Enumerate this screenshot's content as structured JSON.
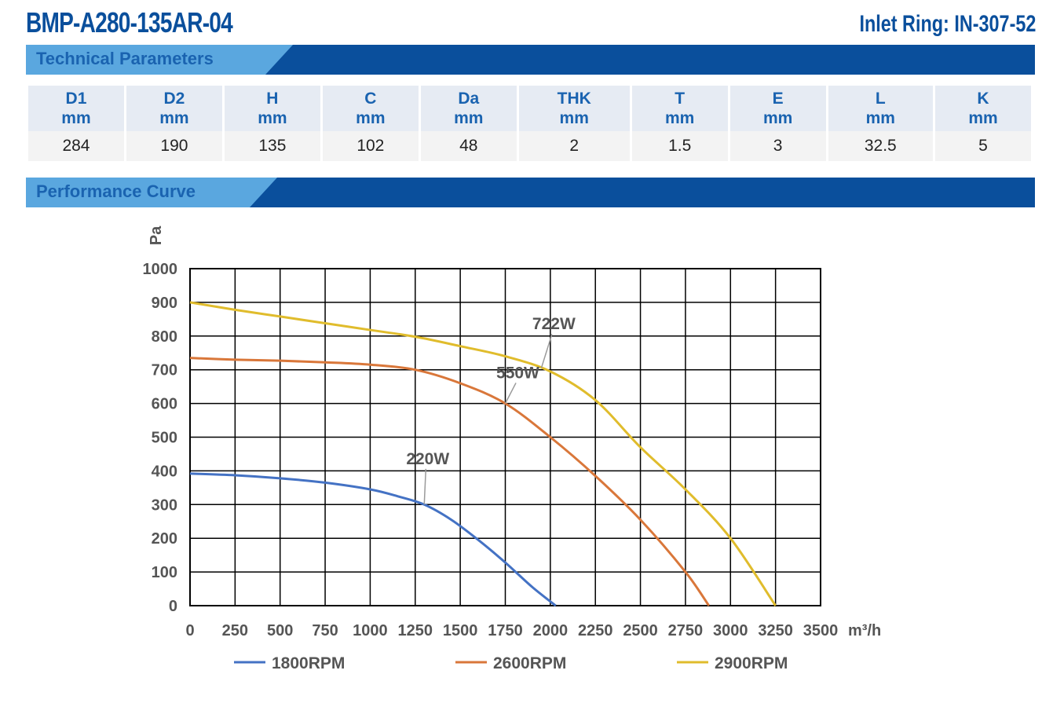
{
  "header": {
    "title": "BMP-A280-135AR-04",
    "inlet_ring": "Inlet Ring: IN-307-52"
  },
  "sections": {
    "technical": "Technical Parameters",
    "performance": "Performance Curve"
  },
  "params": {
    "columns": [
      {
        "name": "D1",
        "unit": "mm",
        "value": "284"
      },
      {
        "name": "D2",
        "unit": "mm",
        "value": "190"
      },
      {
        "name": "H",
        "unit": "mm",
        "value": "135"
      },
      {
        "name": "C",
        "unit": "mm",
        "value": "102"
      },
      {
        "name": "Da",
        "unit": "mm",
        "value": "48"
      },
      {
        "name": "THK",
        "unit": "mm",
        "value": "2"
      },
      {
        "name": "T",
        "unit": "mm",
        "value": "1.5"
      },
      {
        "name": "E",
        "unit": "mm",
        "value": "3"
      },
      {
        "name": "L",
        "unit": "mm",
        "value": "32.5"
      },
      {
        "name": "K",
        "unit": "mm",
        "value": "5"
      }
    ]
  },
  "colors": {
    "brand_blue": "#0a4f9c",
    "bar_blue": "#0a4f9c",
    "bar_light": "#5aa7df",
    "series_1800": "#4472c4",
    "series_2600": "#d9773a",
    "series_2900": "#e0bc2c"
  },
  "chart_data": {
    "type": "line",
    "ylabel": "Pa",
    "xlabel": "m³/h",
    "xlim": [
      0,
      3500
    ],
    "ylim": [
      0,
      1000
    ],
    "xticks": [
      0,
      250,
      500,
      750,
      1000,
      1250,
      1500,
      1750,
      2000,
      2250,
      2500,
      2750,
      3000,
      3250,
      3500
    ],
    "yticks": [
      0,
      100,
      200,
      300,
      400,
      500,
      600,
      700,
      800,
      900,
      1000
    ],
    "grid": true,
    "legend_position": "bottom",
    "series": [
      {
        "name": "1800RPM",
        "color": "#4472c4",
        "points": [
          [
            0,
            392
          ],
          [
            250,
            387
          ],
          [
            500,
            378
          ],
          [
            750,
            365
          ],
          [
            1000,
            345
          ],
          [
            1150,
            325
          ],
          [
            1300,
            300
          ],
          [
            1450,
            255
          ],
          [
            1600,
            195
          ],
          [
            1750,
            128
          ],
          [
            1900,
            55
          ],
          [
            2030,
            0
          ]
        ]
      },
      {
        "name": "2600RPM",
        "color": "#d9773a",
        "points": [
          [
            0,
            735
          ],
          [
            250,
            730
          ],
          [
            500,
            727
          ],
          [
            750,
            722
          ],
          [
            1000,
            715
          ],
          [
            1250,
            700
          ],
          [
            1500,
            660
          ],
          [
            1750,
            600
          ],
          [
            2000,
            500
          ],
          [
            2250,
            385
          ],
          [
            2500,
            255
          ],
          [
            2750,
            100
          ],
          [
            2880,
            0
          ]
        ]
      },
      {
        "name": "2900RPM",
        "color": "#e0bc2c",
        "points": [
          [
            0,
            900
          ],
          [
            250,
            878
          ],
          [
            500,
            858
          ],
          [
            750,
            838
          ],
          [
            1000,
            818
          ],
          [
            1250,
            798
          ],
          [
            1500,
            770
          ],
          [
            1750,
            740
          ],
          [
            2000,
            695
          ],
          [
            2250,
            610
          ],
          [
            2500,
            470
          ],
          [
            2750,
            345
          ],
          [
            3000,
            200
          ],
          [
            3250,
            0
          ]
        ]
      }
    ],
    "annotations": [
      {
        "text": "220W",
        "x": 1200,
        "y": 420,
        "target": [
          1300,
          300
        ]
      },
      {
        "text": "550W",
        "x": 1700,
        "y": 675,
        "target": [
          1750,
          600
        ]
      },
      {
        "text": "722W",
        "x": 1900,
        "y": 820,
        "target": [
          1950,
          705
        ]
      }
    ]
  }
}
